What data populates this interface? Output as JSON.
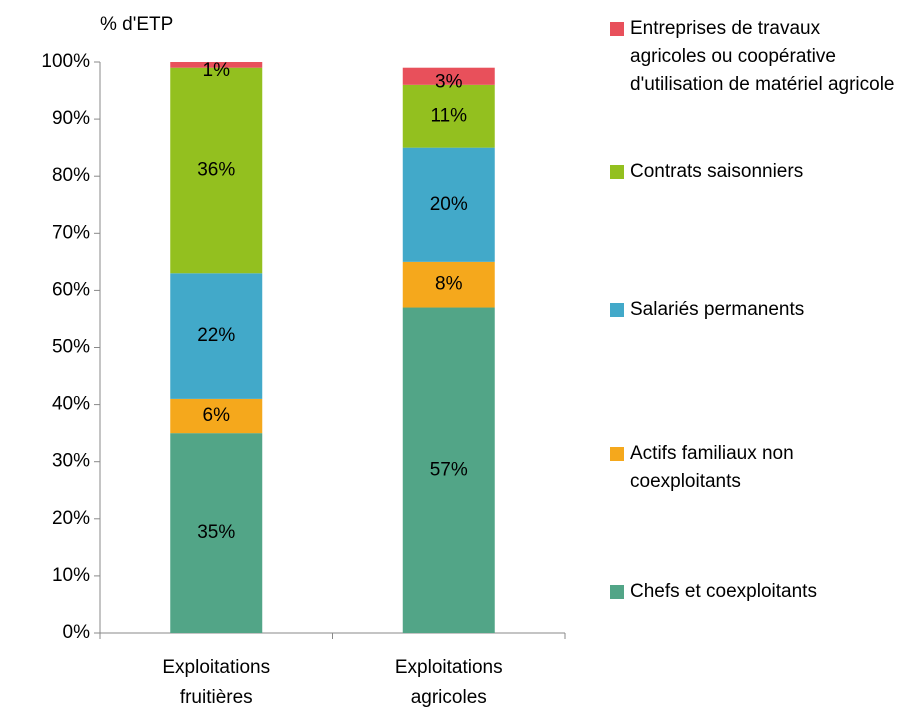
{
  "chart_data": {
    "type": "stacked_bar",
    "ylabel": "% d'ETP",
    "categories": [
      "Exploitations fruitières",
      "Exploitations agricoles"
    ],
    "series": [
      {
        "name": "Chefs et coexploitants",
        "color": "#52a587",
        "values": [
          35,
          57
        ],
        "value_labels": [
          "35%",
          "57%"
        ]
      },
      {
        "name": "Actifs familiaux non coexploitants",
        "color": "#f5a81c",
        "values": [
          6,
          8
        ],
        "value_labels": [
          "6%",
          "8%"
        ]
      },
      {
        "name": "Salariés permanents",
        "color": "#42a9c9",
        "values": [
          22,
          20
        ],
        "value_labels": [
          "22%",
          "20%"
        ]
      },
      {
        "name": "Contrats saisonniers",
        "color": "#93c01f",
        "values": [
          36,
          11
        ],
        "value_labels": [
          "36%",
          "11%"
        ]
      },
      {
        "name": "Entreprises de travaux agricoles ou coopérative d'utilisation de matériel agricole",
        "color": "#e8505b",
        "values": [
          1,
          3
        ],
        "value_labels": [
          "1%",
          "3%"
        ]
      }
    ],
    "ylim": [
      0,
      100
    ],
    "yticks": [
      {
        "value": 0,
        "label": "0%"
      },
      {
        "value": 10,
        "label": "10%"
      },
      {
        "value": 20,
        "label": "20%"
      },
      {
        "value": 30,
        "label": "30%"
      },
      {
        "value": 40,
        "label": "40%"
      },
      {
        "value": 50,
        "label": "50%"
      },
      {
        "value": 60,
        "label": "60%"
      },
      {
        "value": 70,
        "label": "70%"
      },
      {
        "value": 80,
        "label": "80%"
      },
      {
        "value": 90,
        "label": "90%"
      },
      {
        "value": 100,
        "label": "100%"
      }
    ],
    "legend": "right"
  }
}
